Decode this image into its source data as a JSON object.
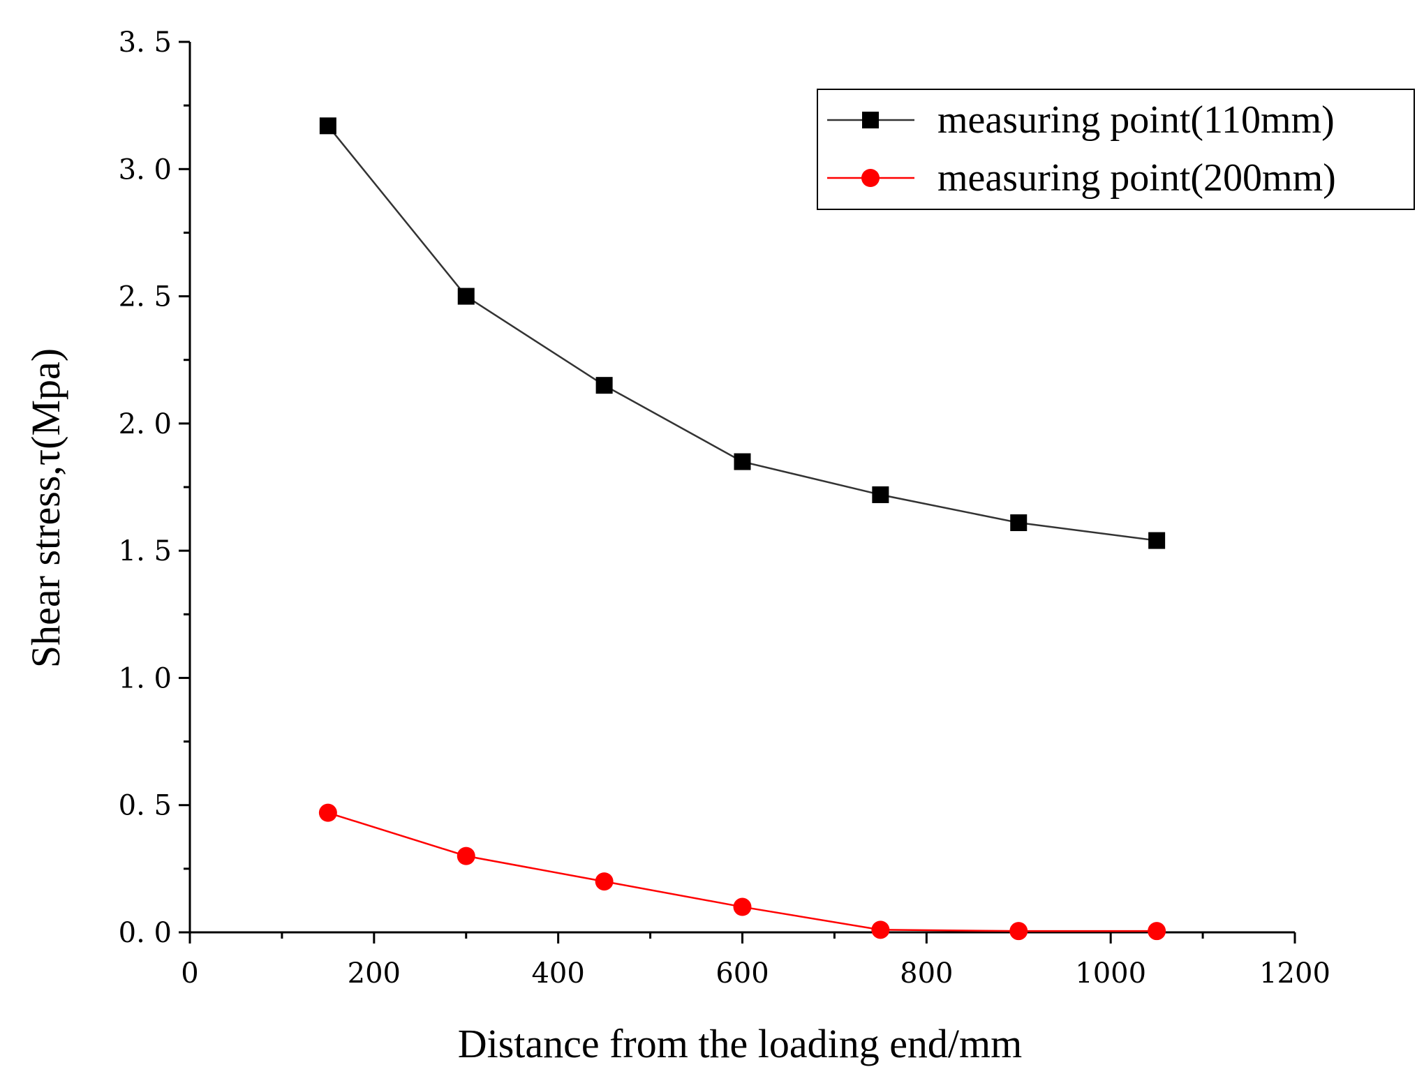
{
  "chart_data": {
    "type": "line",
    "title": "",
    "xlabel": "Distance from the loading end/mm",
    "ylabel": "Shear stress,τ(Mpa)",
    "xlim": [
      0,
      1200
    ],
    "ylim": [
      0,
      3.5
    ],
    "xticks": [
      0,
      200,
      400,
      600,
      800,
      1000,
      1200
    ],
    "xtick_labels": [
      "0",
      "200",
      "400",
      "600",
      "800",
      "1000",
      "1200"
    ],
    "yticks": [
      0,
      0.5,
      1.0,
      1.5,
      2.0,
      2.5,
      3.0,
      3.5
    ],
    "ytick_labels": [
      "0. 0",
      "0. 5",
      "1. 0",
      "1. 5",
      "2. 0",
      "2. 5",
      "3. 0",
      "3. 5"
    ],
    "x": [
      150,
      300,
      450,
      600,
      750,
      900,
      1050
    ],
    "series": [
      {
        "name": "measuring point(110mm)",
        "color": "#000000",
        "marker": "square",
        "values": [
          3.17,
          2.5,
          2.15,
          1.85,
          1.72,
          1.61,
          1.54
        ]
      },
      {
        "name": "measuring point(200mm)",
        "color": "#ff0000",
        "marker": "circle",
        "values": [
          0.47,
          0.3,
          0.2,
          0.1,
          0.01,
          0.005,
          0.005
        ]
      }
    ],
    "grid": false,
    "legend_position": "top-right"
  }
}
